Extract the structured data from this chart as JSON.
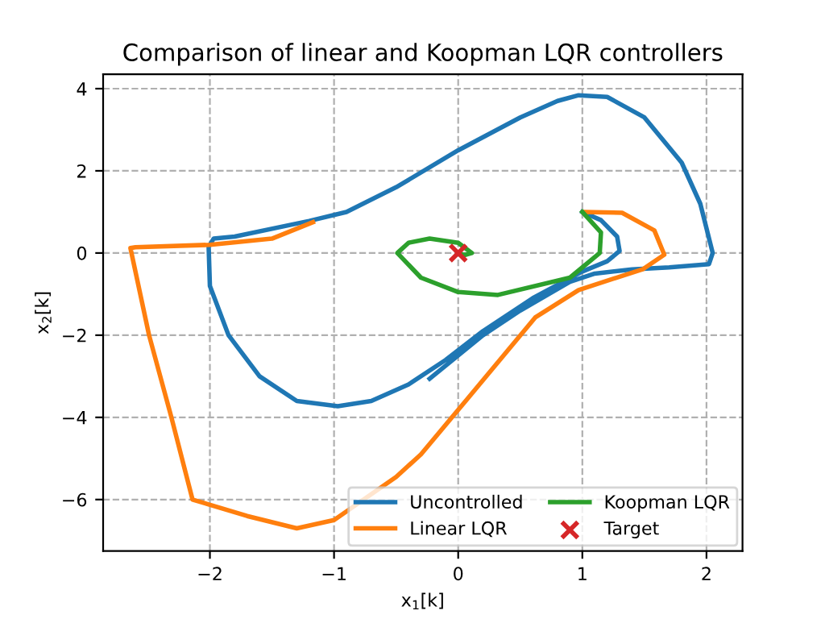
{
  "chart_data": {
    "type": "line",
    "title": "Comparison of linear and Koopman LQR controllers",
    "xlabel": "x$_{1}$[k]",
    "ylabel": "x$_{2}$[k]",
    "xlim": [
      -2.86,
      2.29
    ],
    "ylim": [
      -7.25,
      4.35
    ],
    "xticks": [
      {
        "value": -2,
        "label": "−2"
      },
      {
        "value": -1,
        "label": "−1"
      },
      0,
      1,
      2
    ],
    "yticks": [
      {
        "value": -6,
        "label": "−6"
      },
      {
        "value": -4,
        "label": "−4"
      },
      {
        "value": -2,
        "label": "−2"
      },
      0,
      2,
      4
    ],
    "grid": true,
    "legend": "bottom right",
    "line_style": "solid",
    "marker": "none",
    "series": [
      {
        "name": "Uncontrolled",
        "color": "#1f77b4",
        "x": [
          1,
          1.15,
          1.28,
          1.3,
          1.2,
          1.0,
          0.6,
          0.2,
          -0.1,
          -0.4,
          -0.7,
          -0.97,
          -1.3,
          -1.6,
          -1.85,
          -2.0,
          -2.01,
          -1.97,
          -1.8,
          -1.2,
          -0.9,
          -0.5,
          0,
          0.5,
          0.8,
          0.97,
          1.2,
          1.5,
          1.8,
          1.95,
          2.05,
          2.02,
          1.7,
          1.4,
          1.1,
          0.9,
          0.5,
          0.2,
          -0.23
        ],
        "values": [
          1,
          0.8,
          0.4,
          0.05,
          -0.2,
          -0.45,
          -1.1,
          -1.9,
          -2.6,
          -3.2,
          -3.6,
          -3.73,
          -3.6,
          -3.0,
          -2.0,
          -0.8,
          0.15,
          0.35,
          0.4,
          0.78,
          1.0,
          1.6,
          2.5,
          3.3,
          3.7,
          3.84,
          3.8,
          3.3,
          2.2,
          1.2,
          0,
          -0.27,
          -0.35,
          -0.4,
          -0.5,
          -0.7,
          -1.4,
          -2.0,
          -3.06
        ]
      },
      {
        "name": "Linear LQR",
        "color": "#ff7f0e",
        "x": [
          1.01,
          1.32,
          1.58,
          1.66,
          1.49,
          0.97,
          0.62,
          0.06,
          -0.3,
          -0.5,
          -1.0,
          -1.3,
          -1.7,
          -2.14,
          -2.31,
          -2.49,
          -2.64,
          -2.6,
          -2.0,
          -1.5,
          -1.17
        ],
        "values": [
          1.0,
          0.98,
          0.55,
          -0.04,
          -0.39,
          -0.9,
          -1.57,
          -3.6,
          -4.9,
          -5.45,
          -6.5,
          -6.7,
          -6.4,
          -6.0,
          -4.0,
          -2.0,
          0.12,
          0.14,
          0.2,
          0.35,
          0.75
        ]
      },
      {
        "name": "Koopman LQR",
        "color": "#2ca02c",
        "x": [
          1,
          1.15,
          1.14,
          0.9,
          0.32,
          0,
          -0.3,
          -0.49,
          -0.4,
          -0.23,
          0,
          0.11,
          0.05,
          0
        ],
        "values": [
          1,
          0.5,
          0.0,
          -0.6,
          -1.02,
          -0.95,
          -0.6,
          0,
          0.25,
          0.35,
          0.25,
          0,
          -0.05,
          0
        ]
      },
      {
        "name": "Target",
        "type": "scatter",
        "marker": "cross",
        "color": "#d62728",
        "x": [
          0
        ],
        "values": [
          0
        ]
      }
    ]
  }
}
